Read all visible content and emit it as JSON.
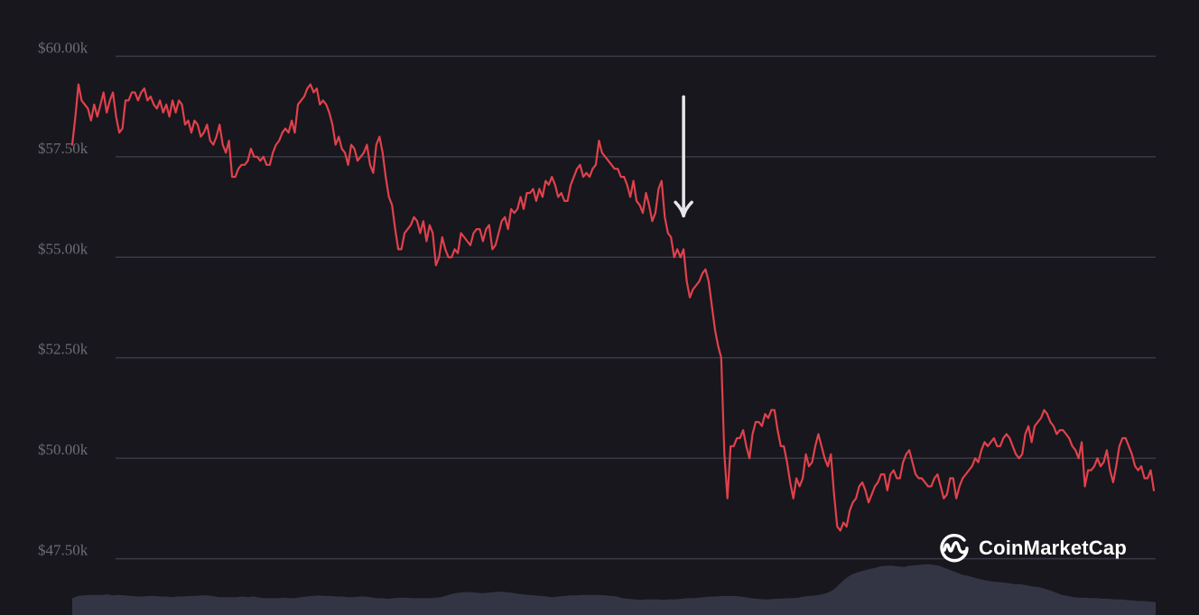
{
  "chart_data": {
    "type": "line",
    "title": "",
    "xlabel": "",
    "ylabel": "",
    "ylim": [
      46100,
      61400
    ],
    "y_ticks": [
      {
        "value": 47500,
        "label": "$47.50k"
      },
      {
        "value": 50000,
        "label": "$50.00k"
      },
      {
        "value": 52500,
        "label": "$52.50k"
      },
      {
        "value": 55000,
        "label": "$55.00k"
      },
      {
        "value": 57500,
        "label": "$57.50k"
      },
      {
        "value": 60000,
        "label": "$60.00k"
      }
    ],
    "grid": true,
    "series": [
      {
        "values": [
          57800,
          58500,
          59300,
          58900,
          58800,
          58700,
          58400,
          58800,
          58500,
          58800,
          59100,
          58600,
          58900,
          59100,
          58500,
          58100,
          58200,
          58900,
          58900,
          59100,
          59100,
          58900,
          59100,
          59200,
          58900,
          59000,
          58800,
          58700,
          58900,
          58600,
          58800,
          58500,
          58900,
          58600,
          58900,
          58800,
          58300,
          58400,
          58100,
          58400,
          58300,
          58000,
          58100,
          58300,
          57900,
          57800,
          58000,
          58300,
          57800,
          57600,
          57900,
          57000,
          57000,
          57200,
          57300,
          57300,
          57400,
          57700,
          57500,
          57500,
          57400,
          57500,
          57300,
          57300,
          57600,
          57800,
          57900,
          58100,
          58200,
          58100,
          58400,
          58100,
          58800,
          58900,
          59000,
          59200,
          59300,
          59100,
          59200,
          58800,
          58900,
          58800,
          58600,
          58300,
          57800,
          58000,
          57700,
          57600,
          57300,
          57800,
          57700,
          57400,
          57500,
          57600,
          57800,
          57300,
          57100,
          57800,
          58000,
          57600,
          57000,
          56500,
          56300,
          55700,
          55200,
          55200,
          55600,
          55700,
          55800,
          56000,
          55900,
          55600,
          55900,
          55400,
          55800,
          55600,
          54800,
          55000,
          55500,
          55200,
          55000,
          55000,
          55200,
          55100,
          55600,
          55500,
          55400,
          55300,
          55600,
          55700,
          55700,
          55400,
          55700,
          55800,
          55200,
          55300,
          55600,
          55900,
          56000,
          55700,
          56200,
          56100,
          56200,
          56500,
          56200,
          56600,
          56600,
          56700,
          56400,
          56700,
          56500,
          56900,
          56800,
          57000,
          56800,
          56500,
          56600,
          56400,
          56400,
          56800,
          57000,
          57200,
          57300,
          57000,
          57100,
          57000,
          57200,
          57300,
          57900,
          57600,
          57500,
          57400,
          57300,
          57200,
          57200,
          57000,
          57000,
          56800,
          56500,
          56900,
          56400,
          56300,
          56100,
          56600,
          56300,
          55900,
          56100,
          56700,
          56900,
          56000,
          55600,
          55500,
          55000,
          55200,
          55000,
          55200,
          54400,
          54000,
          54200,
          54300,
          54400,
          54600,
          54700,
          54400,
          53800,
          53200,
          52800,
          52500,
          50100,
          49000,
          50300,
          50300,
          50500,
          50500,
          50700,
          50300,
          50000,
          50600,
          50900,
          50900,
          50800,
          51100,
          51000,
          51200,
          51200,
          50700,
          50300,
          50300,
          49900,
          49400,
          49000,
          49500,
          49300,
          49500,
          50100,
          49800,
          49900,
          50300,
          50600,
          50300,
          50000,
          49800,
          50100,
          49100,
          48300,
          48200,
          48400,
          48300,
          48700,
          48900,
          49000,
          49300,
          49400,
          49200,
          48900,
          49100,
          49300,
          49400,
          49600,
          49600,
          49200,
          49600,
          49700,
          49500,
          49500,
          49900,
          50100,
          50200,
          49900,
          49600,
          49500,
          49500,
          49400,
          49300,
          49300,
          49500,
          49600,
          49300,
          49000,
          49100,
          49500,
          49500,
          49000,
          49300,
          49500,
          49600,
          49700,
          49800,
          50000,
          49900,
          50200,
          50400,
          50300,
          50400,
          50500,
          50300,
          50300,
          50500,
          50600,
          50500,
          50300,
          50100,
          50000,
          50100,
          50600,
          50800,
          50400,
          50800,
          50900,
          51000,
          51200,
          51100,
          50900,
          50800,
          50600,
          50700,
          50700,
          50600,
          50500,
          50300,
          50200,
          50000,
          50400,
          49300,
          49700,
          49700,
          49800,
          50000,
          49800,
          49900,
          50200,
          49700,
          49400,
          49800,
          50300,
          50500,
          50500,
          50300,
          50100,
          49800,
          49700,
          49800,
          49500,
          49500,
          49700,
          49200
        ],
        "color": "#e0414c"
      }
    ],
    "volume": {
      "values": [
        0.3,
        0.34,
        0.35,
        0.36,
        0.36,
        0.36,
        0.37,
        0.35,
        0.36,
        0.35,
        0.34,
        0.33,
        0.33,
        0.34,
        0.34,
        0.33,
        0.33,
        0.32,
        0.33,
        0.33,
        0.34,
        0.34,
        0.35,
        0.35,
        0.34,
        0.32,
        0.32,
        0.32,
        0.32,
        0.33,
        0.32,
        0.33,
        0.31,
        0.3,
        0.3,
        0.3,
        0.31,
        0.3,
        0.3,
        0.32,
        0.33,
        0.34,
        0.35,
        0.34,
        0.34,
        0.33,
        0.33,
        0.32,
        0.32,
        0.33,
        0.33,
        0.32,
        0.3,
        0.3,
        0.29,
        0.3,
        0.31,
        0.31,
        0.3,
        0.3,
        0.3,
        0.3,
        0.31,
        0.32,
        0.35,
        0.38,
        0.4,
        0.41,
        0.41,
        0.4,
        0.39,
        0.4,
        0.41,
        0.42,
        0.41,
        0.4,
        0.38,
        0.37,
        0.36,
        0.35,
        0.34,
        0.33,
        0.32,
        0.33,
        0.34,
        0.35,
        0.35,
        0.36,
        0.36,
        0.36,
        0.36,
        0.35,
        0.34,
        0.33,
        0.3,
        0.29,
        0.28,
        0.27,
        0.28,
        0.28,
        0.28,
        0.27,
        0.28,
        0.28,
        0.29,
        0.3,
        0.3,
        0.31,
        0.32,
        0.33,
        0.33,
        0.34,
        0.34,
        0.34,
        0.33,
        0.32,
        0.3,
        0.29,
        0.28,
        0.28,
        0.29,
        0.29,
        0.3,
        0.3,
        0.31,
        0.33,
        0.34,
        0.35,
        0.37,
        0.4,
        0.45,
        0.55,
        0.65,
        0.72,
        0.76,
        0.79,
        0.82,
        0.84,
        0.87,
        0.88,
        0.88,
        0.87,
        0.86,
        0.88,
        0.89,
        0.9,
        0.91,
        0.9,
        0.88,
        0.84,
        0.8,
        0.76,
        0.72,
        0.7,
        0.67,
        0.64,
        0.62,
        0.6,
        0.59,
        0.58,
        0.57,
        0.55,
        0.55,
        0.53,
        0.51,
        0.5,
        0.47,
        0.44,
        0.4,
        0.36,
        0.34,
        0.32,
        0.31,
        0.31,
        0.3,
        0.3,
        0.29,
        0.29,
        0.28,
        0.28,
        0.27,
        0.26,
        0.25,
        0.25,
        0.24,
        0.23
      ]
    }
  },
  "colors": {
    "background": "#17171d",
    "grid": "#3a3a46",
    "tick_text": "#6c6c78",
    "price_line": "#e0414c",
    "volume": "#343544",
    "arrow": "#e8e8ea",
    "watermark": "#ffffff"
  },
  "annotation": {
    "icon": "down-arrow-icon",
    "at_index": 195
  },
  "watermark": {
    "text": "CoinMarketCap",
    "icon": "coinmarketcap-logo-icon"
  }
}
